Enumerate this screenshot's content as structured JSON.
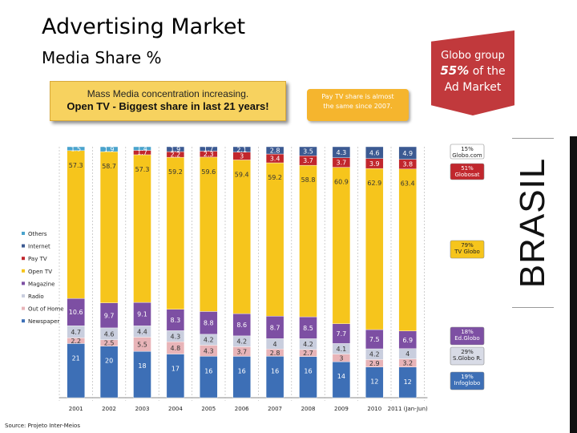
{
  "header": {
    "title": "Advertising Market",
    "subtitle": "Media Share %"
  },
  "callouts": {
    "concentration_line1": "Mass Media concentration increasing.",
    "concentration_line2": "Open TV - Biggest share in last 21 years!",
    "paytv_line1": "Pay TV share is almost",
    "paytv_line2": "the same since 2007."
  },
  "globo": {
    "line1": "Globo group",
    "pct": "55%",
    "line2": "of the",
    "line3": "Ad Market"
  },
  "brasil": "BRASIL",
  "source": "Source: Projeto Inter-Meios",
  "colors": {
    "Newspaper": "#3d6fb6",
    "Out of Home": "#e8b4b8",
    "Radio": "#c9cede",
    "Magazine": "#7d4fa3",
    "Open TV": "#f6c51c",
    "Pay TV": "#c1272d",
    "Internet": "#3c5a92",
    "Others": "#4aa3cc"
  },
  "chart_data": {
    "type": "bar",
    "stacked": true,
    "categories": [
      "2001",
      "2002",
      "2003",
      "2004",
      "2005",
      "2006",
      "2007",
      "2008",
      "2009",
      "2010",
      "2011 (Jan-Jun)"
    ],
    "series": [
      {
        "name": "Newspaper",
        "values": [
          21,
          20,
          18,
          17,
          16,
          16,
          16,
          16,
          14,
          12,
          12
        ]
      },
      {
        "name": "Out of Home",
        "values": [
          2.2,
          2.5,
          5.5,
          4.8,
          4.3,
          3.7,
          2.8,
          2.7,
          3.0,
          2.9,
          3.2
        ]
      },
      {
        "name": "Radio",
        "values": [
          4.7,
          4.6,
          4.4,
          4.3,
          4.2,
          4.2,
          4.0,
          4.2,
          4.1,
          4.2,
          4.0
        ]
      },
      {
        "name": "Magazine",
        "values": [
          10.6,
          9.7,
          9.1,
          8.3,
          8.8,
          8.6,
          8.7,
          8.5,
          7.7,
          7.5,
          6.9
        ]
      },
      {
        "name": "Open TV",
        "values": [
          57.3,
          58.7,
          57.3,
          59.2,
          59.6,
          59.4,
          59.2,
          58.8,
          60.9,
          62.9,
          63.4
        ]
      },
      {
        "name": "Pay TV",
        "values": [
          null,
          null,
          1.7,
          2.2,
          2.3,
          3.0,
          3.4,
          3.7,
          3.7,
          3.9,
          3.8
        ]
      },
      {
        "name": "Internet",
        "values": [
          null,
          null,
          null,
          1.9,
          1.7,
          2.1,
          2.8,
          3.5,
          4.3,
          4.6,
          4.9
        ]
      },
      {
        "name": "Others",
        "values": [
          1.5,
          1.9,
          1.4,
          null,
          null,
          null,
          null,
          null,
          null,
          null,
          null
        ]
      }
    ],
    "legend": [
      "Others",
      "Internet",
      "Pay TV",
      "Open TV",
      "Magazine",
      "Radio",
      "Out of Home",
      "Newspaper"
    ],
    "legend_position": "left",
    "ylim": [
      0,
      100
    ],
    "xlabel": "",
    "ylabel": "",
    "annotations": [
      {
        "label": "15%",
        "sublabel": "Globo.com"
      },
      {
        "label": "51%",
        "sublabel": "Globosat"
      },
      {
        "label": "79%",
        "sublabel": "TV Globo"
      },
      {
        "label": "18%",
        "sublabel": "Ed.Globo"
      },
      {
        "label": "29%",
        "sublabel": "S.Globo R."
      },
      {
        "label": "19%",
        "sublabel": "Infoglobo"
      }
    ]
  }
}
